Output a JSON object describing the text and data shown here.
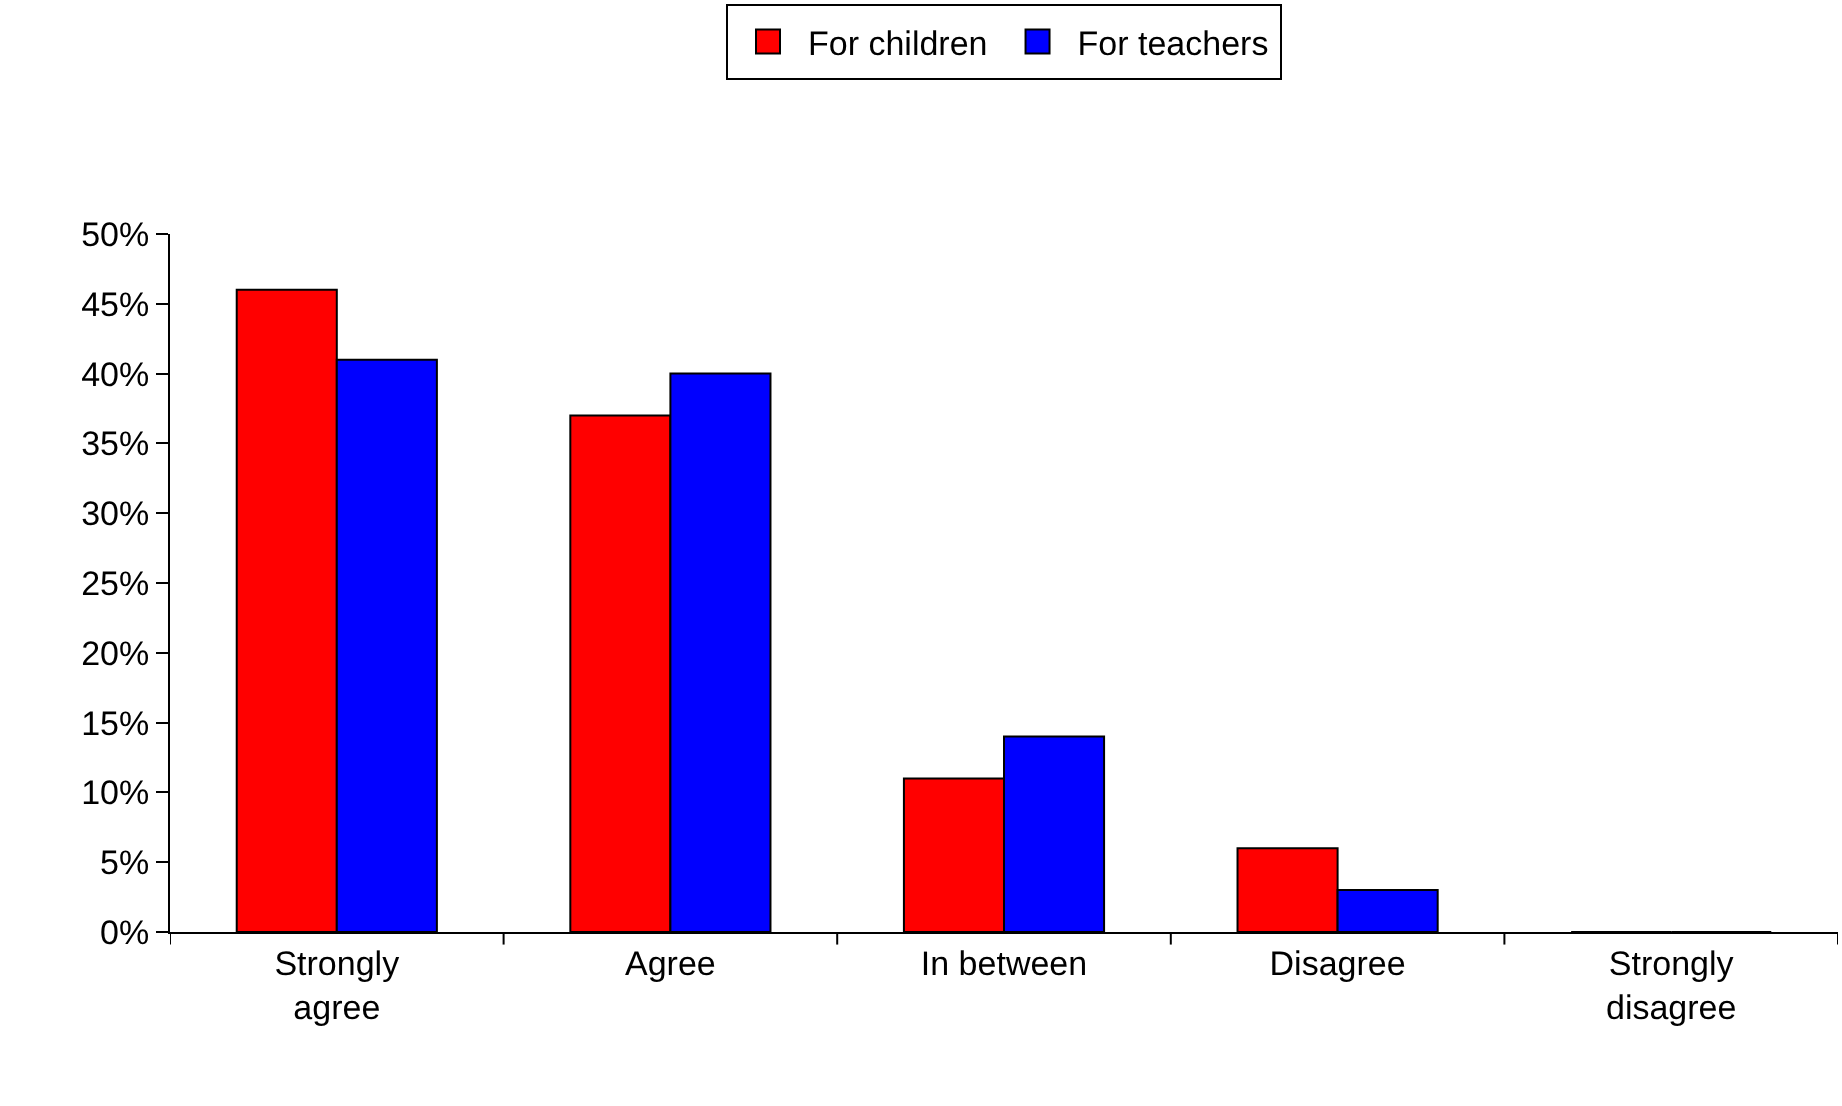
{
  "chart_data": {
    "type": "bar",
    "categories": [
      "Strongly agree",
      "Agree",
      "In between",
      "Disagree",
      "Strongly disagree"
    ],
    "series": [
      {
        "name": "For children",
        "color": "#ff0000",
        "values": [
          46,
          37,
          11,
          6,
          0
        ]
      },
      {
        "name": "For teachers",
        "color": "#0000ff",
        "values": [
          41,
          40,
          14,
          3,
          0
        ]
      }
    ],
    "ylim": [
      0,
      50
    ],
    "yticks": [
      {
        "value": 0,
        "label": "0%"
      },
      {
        "value": 5,
        "label": "5%"
      },
      {
        "value": 10,
        "label": "10%"
      },
      {
        "value": 15,
        "label": "15%"
      },
      {
        "value": 20,
        "label": "20%"
      },
      {
        "value": 25,
        "label": "25%"
      },
      {
        "value": 30,
        "label": "30%"
      },
      {
        "value": 35,
        "label": "35%"
      },
      {
        "value": 40,
        "label": "40%"
      },
      {
        "value": 45,
        "label": "45%"
      },
      {
        "value": 50,
        "label": "50%"
      }
    ],
    "grid": false,
    "legend": "top"
  }
}
